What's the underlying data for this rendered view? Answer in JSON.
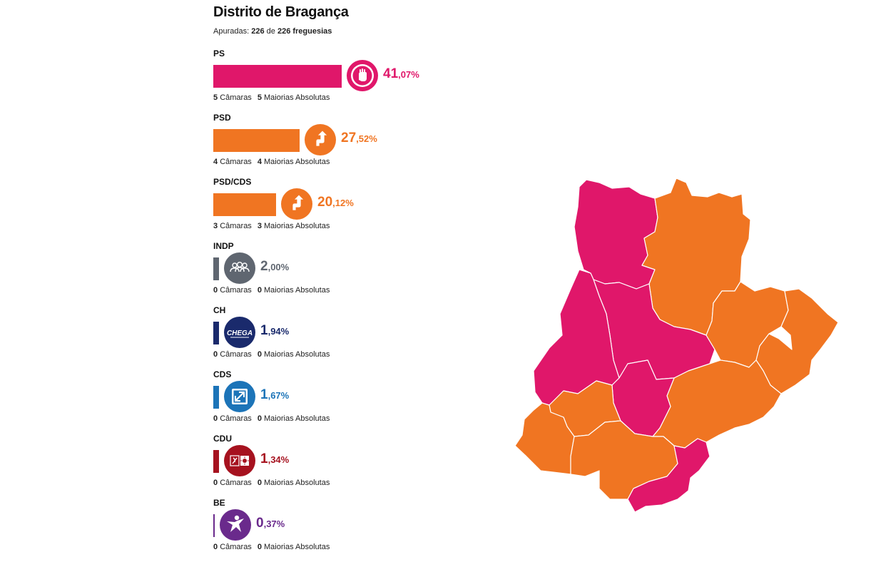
{
  "header": {
    "title": "Distrito de Bragança",
    "counted_label": "Apuradas:",
    "counted_value": "226",
    "counted_of": "de",
    "counted_total": "226 freguesias"
  },
  "colors": {
    "ps": "#e0176a",
    "psd": "#f07522",
    "psdcds": "#f07522",
    "indp": "#5f6670",
    "ch": "#1a2a6c",
    "cds": "#1c74b8",
    "cdu": "#a6121f",
    "be": "#6a2a8c"
  },
  "labels": {
    "camaras": "Câmaras",
    "maiorias": "Maiorias Absolutas"
  },
  "parties": [
    {
      "name": "PS",
      "pct_int": "41",
      "pct_dec": ",07%",
      "share": 41.07,
      "camaras": "5",
      "maiorias": "5",
      "icon": "rose-fist-icon"
    },
    {
      "name": "PSD",
      "pct_int": "27",
      "pct_dec": ",52%",
      "share": 27.52,
      "camaras": "4",
      "maiorias": "4",
      "icon": "arrow-up-icon"
    },
    {
      "name": "PSD/CDS",
      "pct_int": "20",
      "pct_dec": ",12%",
      "share": 20.12,
      "camaras": "3",
      "maiorias": "3",
      "icon": "arrow-up-icon"
    },
    {
      "name": "INDP",
      "pct_int": "2",
      "pct_dec": ",00%",
      "share": 2.0,
      "camaras": "0",
      "maiorias": "0",
      "icon": "people-icon"
    },
    {
      "name": "CH",
      "pct_int": "1",
      "pct_dec": ",94%",
      "share": 1.94,
      "camaras": "0",
      "maiorias": "0",
      "icon": "chega-logo",
      "logo_text": "CHEGA"
    },
    {
      "name": "CDS",
      "pct_int": "1",
      "pct_dec": ",67%",
      "share": 1.67,
      "camaras": "0",
      "maiorias": "0",
      "icon": "cds-logo"
    },
    {
      "name": "CDU",
      "pct_int": "1",
      "pct_dec": ",34%",
      "share": 1.34,
      "camaras": "0",
      "maiorias": "0",
      "icon": "hammer-sickle-icon"
    },
    {
      "name": "BE",
      "pct_int": "0",
      "pct_dec": ",37%",
      "share": 0.37,
      "camaras": "0",
      "maiorias": "0",
      "icon": "star-person-icon"
    }
  ],
  "map": {
    "municipalities": [
      {
        "winner": "ps"
      },
      {
        "winner": "psd"
      },
      {
        "winner": "ps"
      },
      {
        "winner": "ps"
      },
      {
        "winner": "psdcds"
      },
      {
        "winner": "psd"
      },
      {
        "winner": "psdcds"
      },
      {
        "winner": "ps"
      },
      {
        "winner": "psd"
      },
      {
        "winner": "psdcds"
      },
      {
        "winner": "psd"
      },
      {
        "winner": "ps"
      }
    ]
  }
}
